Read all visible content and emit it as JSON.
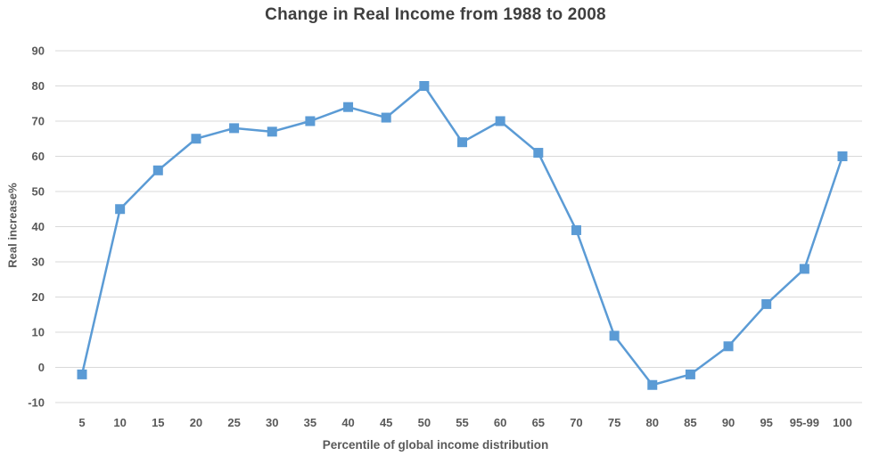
{
  "chart_data": {
    "type": "line",
    "title": "Change in Real Income from 1988 to 2008",
    "xlabel": "Percentile of global income distribution",
    "ylabel": "Real increase%",
    "categories": [
      "5",
      "10",
      "15",
      "20",
      "25",
      "30",
      "35",
      "40",
      "45",
      "50",
      "55",
      "60",
      "65",
      "70",
      "75",
      "80",
      "85",
      "90",
      "95",
      "95-99",
      "100"
    ],
    "values": [
      -2,
      45,
      56,
      65,
      68,
      67,
      70,
      74,
      71,
      80,
      64,
      70,
      61,
      39,
      9,
      -5,
      -2,
      6,
      18,
      28,
      60
    ],
    "ylim": [
      -10,
      90
    ],
    "ytick_step": 10,
    "grid": true,
    "legend_position": "none",
    "marker": "square",
    "line_color": "#5b9bd5"
  },
  "colors": {
    "title_text": "#3f3f3f",
    "axis_text": "#595959",
    "gridline": "#d9d9d9",
    "background": "#ffffff",
    "series": "#5b9bd5"
  }
}
